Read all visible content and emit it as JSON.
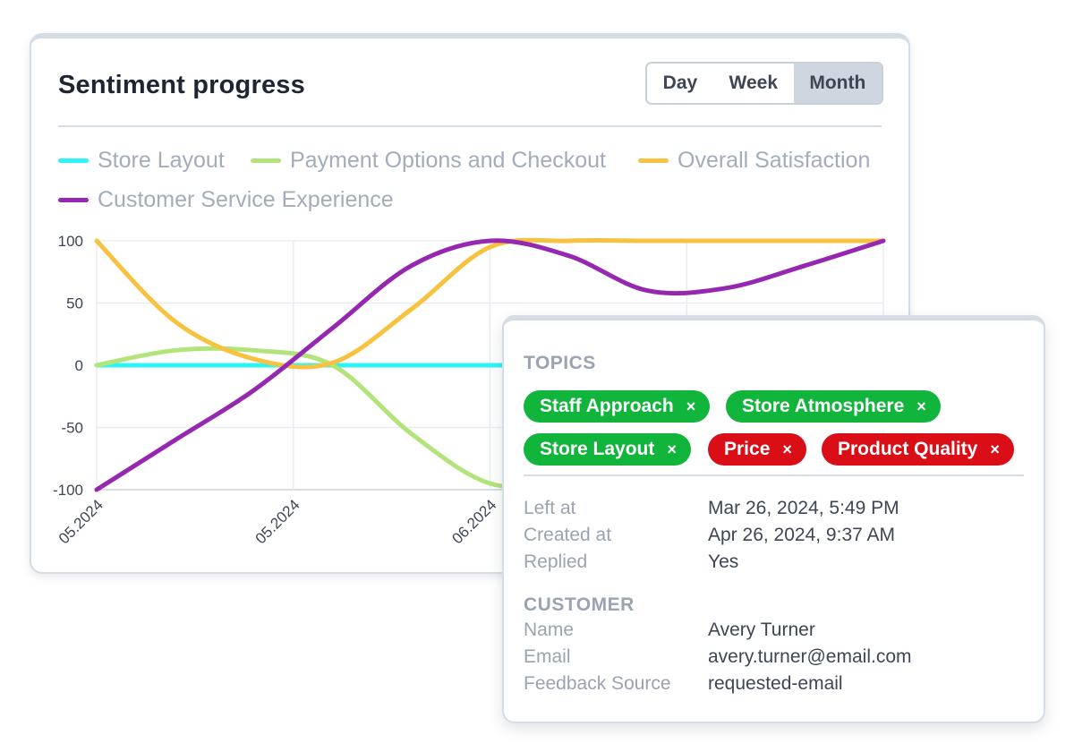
{
  "card": {
    "title": "Sentiment progress",
    "period_buttons": [
      "Day",
      "Week",
      "Month"
    ],
    "active_period": "Month"
  },
  "chart_data": {
    "type": "line",
    "y_ticks": [
      "100",
      "50",
      "0",
      "-50",
      "-100"
    ],
    "x_ticks": [
      "05.2024",
      "05.2024",
      "06.2024"
    ],
    "ylim": [
      -100,
      100
    ],
    "grid": true,
    "legend_position": "top",
    "series": [
      {
        "name": "Store Layout",
        "color": "#2ef5f5",
        "values": [
          0,
          0,
          0,
          0,
          0,
          0,
          0,
          0,
          0,
          0,
          0
        ]
      },
      {
        "name": "Payment Options and Checkout",
        "color": "#b3e37b",
        "values": [
          0,
          12,
          12,
          0,
          -55,
          -95,
          -95,
          -95,
          -95,
          -95,
          -95
        ]
      },
      {
        "name": "Overall Satisfaction",
        "color": "#f8c241",
        "values": [
          100,
          35,
          5,
          2,
          45,
          95,
          100,
          100,
          100,
          100,
          100
        ]
      },
      {
        "name": "Customer Service Experience",
        "color": "#9627b0",
        "values": [
          -100,
          -60,
          -20,
          30,
          80,
          100,
          88,
          60,
          62,
          80,
          100
        ]
      }
    ]
  },
  "detail": {
    "topics_title": "TOPICS",
    "topics": [
      {
        "label": "Staff Approach",
        "tone": "positive",
        "remove": "×"
      },
      {
        "label": "Store Atmosphere",
        "tone": "positive",
        "remove": "×"
      },
      {
        "label": "Store Layout",
        "tone": "positive",
        "remove": "×"
      },
      {
        "label": "Price",
        "tone": "negative",
        "remove": "×"
      },
      {
        "label": "Product Quality",
        "tone": "negative",
        "remove": "×"
      }
    ],
    "meta": [
      {
        "key": "Left at",
        "value": "Mar 26, 2024, 5:49 PM"
      },
      {
        "key": "Created at",
        "value": "Apr 26, 2024, 9:37 AM"
      },
      {
        "key": "Replied",
        "value": "Yes"
      }
    ],
    "customer_title": "CUSTOMER",
    "customer": [
      {
        "key": "Name",
        "value": "Avery Turner"
      },
      {
        "key": "Email",
        "value": "avery.turner@email.com"
      },
      {
        "key": "Feedback Source",
        "value": "requested-email"
      }
    ]
  },
  "colors": {
    "positive_tag": "#12b53c",
    "negative_tag": "#d90e16"
  }
}
